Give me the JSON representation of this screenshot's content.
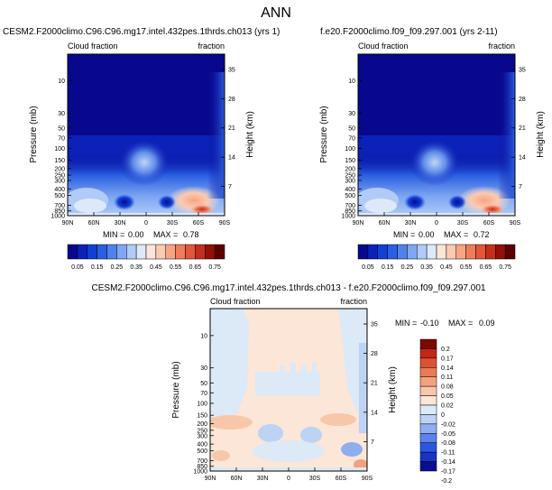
{
  "figure_title": "ANN",
  "colorscales": {
    "abs": [
      "#08088f",
      "#0b21b8",
      "#1240d6",
      "#2a5fe3",
      "#4f82ec",
      "#7fa7f2",
      "#b0cbf6",
      "#dde9fa",
      "#fbe6d9",
      "#fbcab1",
      "#f7a483",
      "#ef7d5c",
      "#e2573b",
      "#c52e1c",
      "#921006",
      "#5c0000"
    ],
    "diff": [
      "#0a0f8f",
      "#1734c4",
      "#2d56e0",
      "#5c82ec",
      "#8faeef",
      "#bcd3f5",
      "#dce9f7",
      "#fbe6d7",
      "#f8c7a9",
      "#f3a27f",
      "#ea7b58",
      "#dc5235",
      "#c4261a",
      "#7a0b00"
    ]
  },
  "chart_data": [
    {
      "type": "heatmap",
      "title": "CESM2.F2000climo.C96.C96.mg17.intel.432pes.1thrds.ch013 (yrs 1)",
      "left_label": "Cloud fraction",
      "right_label": "fraction",
      "xlabel": "",
      "ylabel": "Pressure (mb)",
      "ylabel_right": "Height (km)",
      "xticks": [
        "90N",
        "60N",
        "30N",
        "0",
        "30S",
        "60S",
        "90S"
      ],
      "yticks": [
        "10",
        "30",
        "50",
        "70",
        "100",
        "150",
        "200",
        "250",
        "300",
        "400",
        "500",
        "700",
        "850",
        "1000"
      ],
      "yticks_right": [
        "35",
        "28",
        "21",
        "14",
        "7"
      ],
      "stats": {
        "min_label": "MIN =",
        "min": "0.00",
        "max_label": "MAX =",
        "max": "0.78"
      },
      "colorbar_ticks": [
        "0.05",
        "0.15",
        "0.25",
        "0.35",
        "0.45",
        "0.55",
        "0.65",
        "0.75"
      ],
      "x_range": [
        90,
        -90
      ],
      "y_range_mb": [
        1000,
        4
      ],
      "features": {
        "low_cloud_max": 0.78,
        "upper_cloud_max": 0.3,
        "polar_high_cloud": 0.2
      }
    },
    {
      "type": "heatmap",
      "title": "f.e20.F2000climo.f09_f09.297.001 (yrs 2-11)",
      "left_label": "Cloud fraction",
      "right_label": "fraction",
      "xlabel": "",
      "ylabel": "Pressure (mb)",
      "ylabel_right": "Height (km)",
      "xticks": [
        "90N",
        "60N",
        "30N",
        "0",
        "30S",
        "60S",
        "90S"
      ],
      "yticks": [
        "10",
        "30",
        "50",
        "70",
        "100",
        "150",
        "200",
        "250",
        "300",
        "400",
        "500",
        "700",
        "850",
        "1000"
      ],
      "yticks_right": [
        "35",
        "28",
        "21",
        "14",
        "7"
      ],
      "stats": {
        "min_label": "MIN =",
        "min": "0.00",
        "max_label": "MAX =",
        "max": "0.72"
      },
      "colorbar_ticks": [
        "0.05",
        "0.15",
        "0.25",
        "0.35",
        "0.45",
        "0.55",
        "0.65",
        "0.75"
      ],
      "x_range": [
        90,
        -90
      ],
      "y_range_mb": [
        1000,
        4
      ],
      "features": {
        "low_cloud_max": 0.72,
        "upper_cloud_max": 0.28,
        "polar_high_cloud": 0.2
      }
    },
    {
      "type": "heatmap",
      "title": "CESM2.F2000climo.C96.C96.mg17.intel.432pes.1thrds.ch013 - f.e20.F2000climo.f09_f09.297.001",
      "left_label": "Cloud fraction",
      "right_label": "fraction",
      "xlabel": "",
      "ylabel": "Pressure (mb)",
      "ylabel_right": "Height (km)",
      "xticks": [
        "90N",
        "60N",
        "30N",
        "0",
        "30S",
        "60S",
        "90S"
      ],
      "yticks": [
        "10",
        "30",
        "50",
        "70",
        "100",
        "150",
        "200",
        "250",
        "300",
        "400",
        "500",
        "700",
        "850",
        "1000"
      ],
      "yticks_right": [
        "35",
        "28",
        "21",
        "14",
        "7"
      ],
      "stats": {
        "min_label": "MIN =",
        "min": "-0.10",
        "max_label": "MAX =",
        "max": "0.09"
      },
      "colorbar_ticks": [
        "0.2",
        "0.17",
        "0.14",
        "0.11",
        "0.08",
        "0.05",
        "0.02",
        "0",
        "-0.02",
        "-0.05",
        "-0.08",
        "-0.11",
        "-0.14",
        "-0.17",
        "-0.2"
      ],
      "x_range": [
        90,
        -90
      ],
      "y_range_mb": [
        1000,
        4
      ]
    }
  ]
}
